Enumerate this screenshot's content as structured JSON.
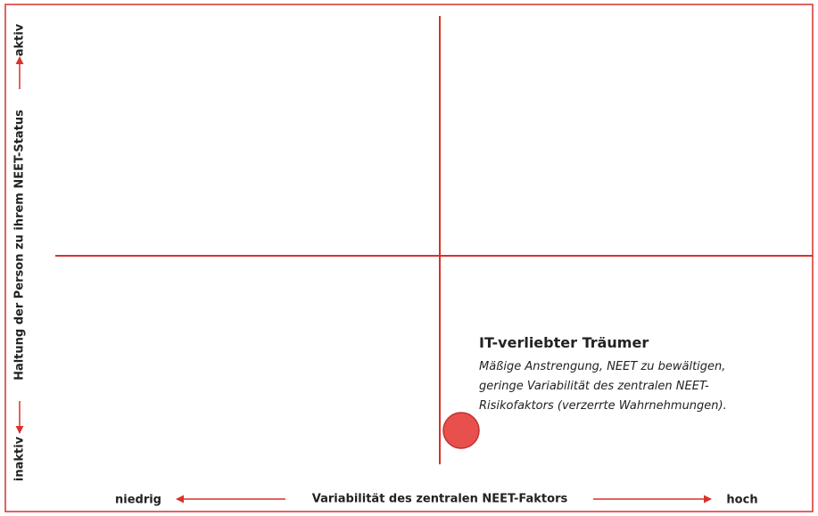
{
  "axes": {
    "y_label": "Haltung der Person zu ihrem NEET-Status",
    "y_high": "aktiv",
    "y_low": "inaktiv",
    "x_label": "Variabilität des zentralen NEET-Faktors",
    "x_low": "niedrig",
    "x_high": "hoch"
  },
  "item": {
    "title": "IT-verliebter Träumer",
    "description": [
      "Mäßige Anstrengung, NEET zu bewältigen,",
      "geringe Variabilität des zentralen NEET-",
      "Risikofaktors (verzerrte Wahrnehmungen)."
    ]
  }
}
